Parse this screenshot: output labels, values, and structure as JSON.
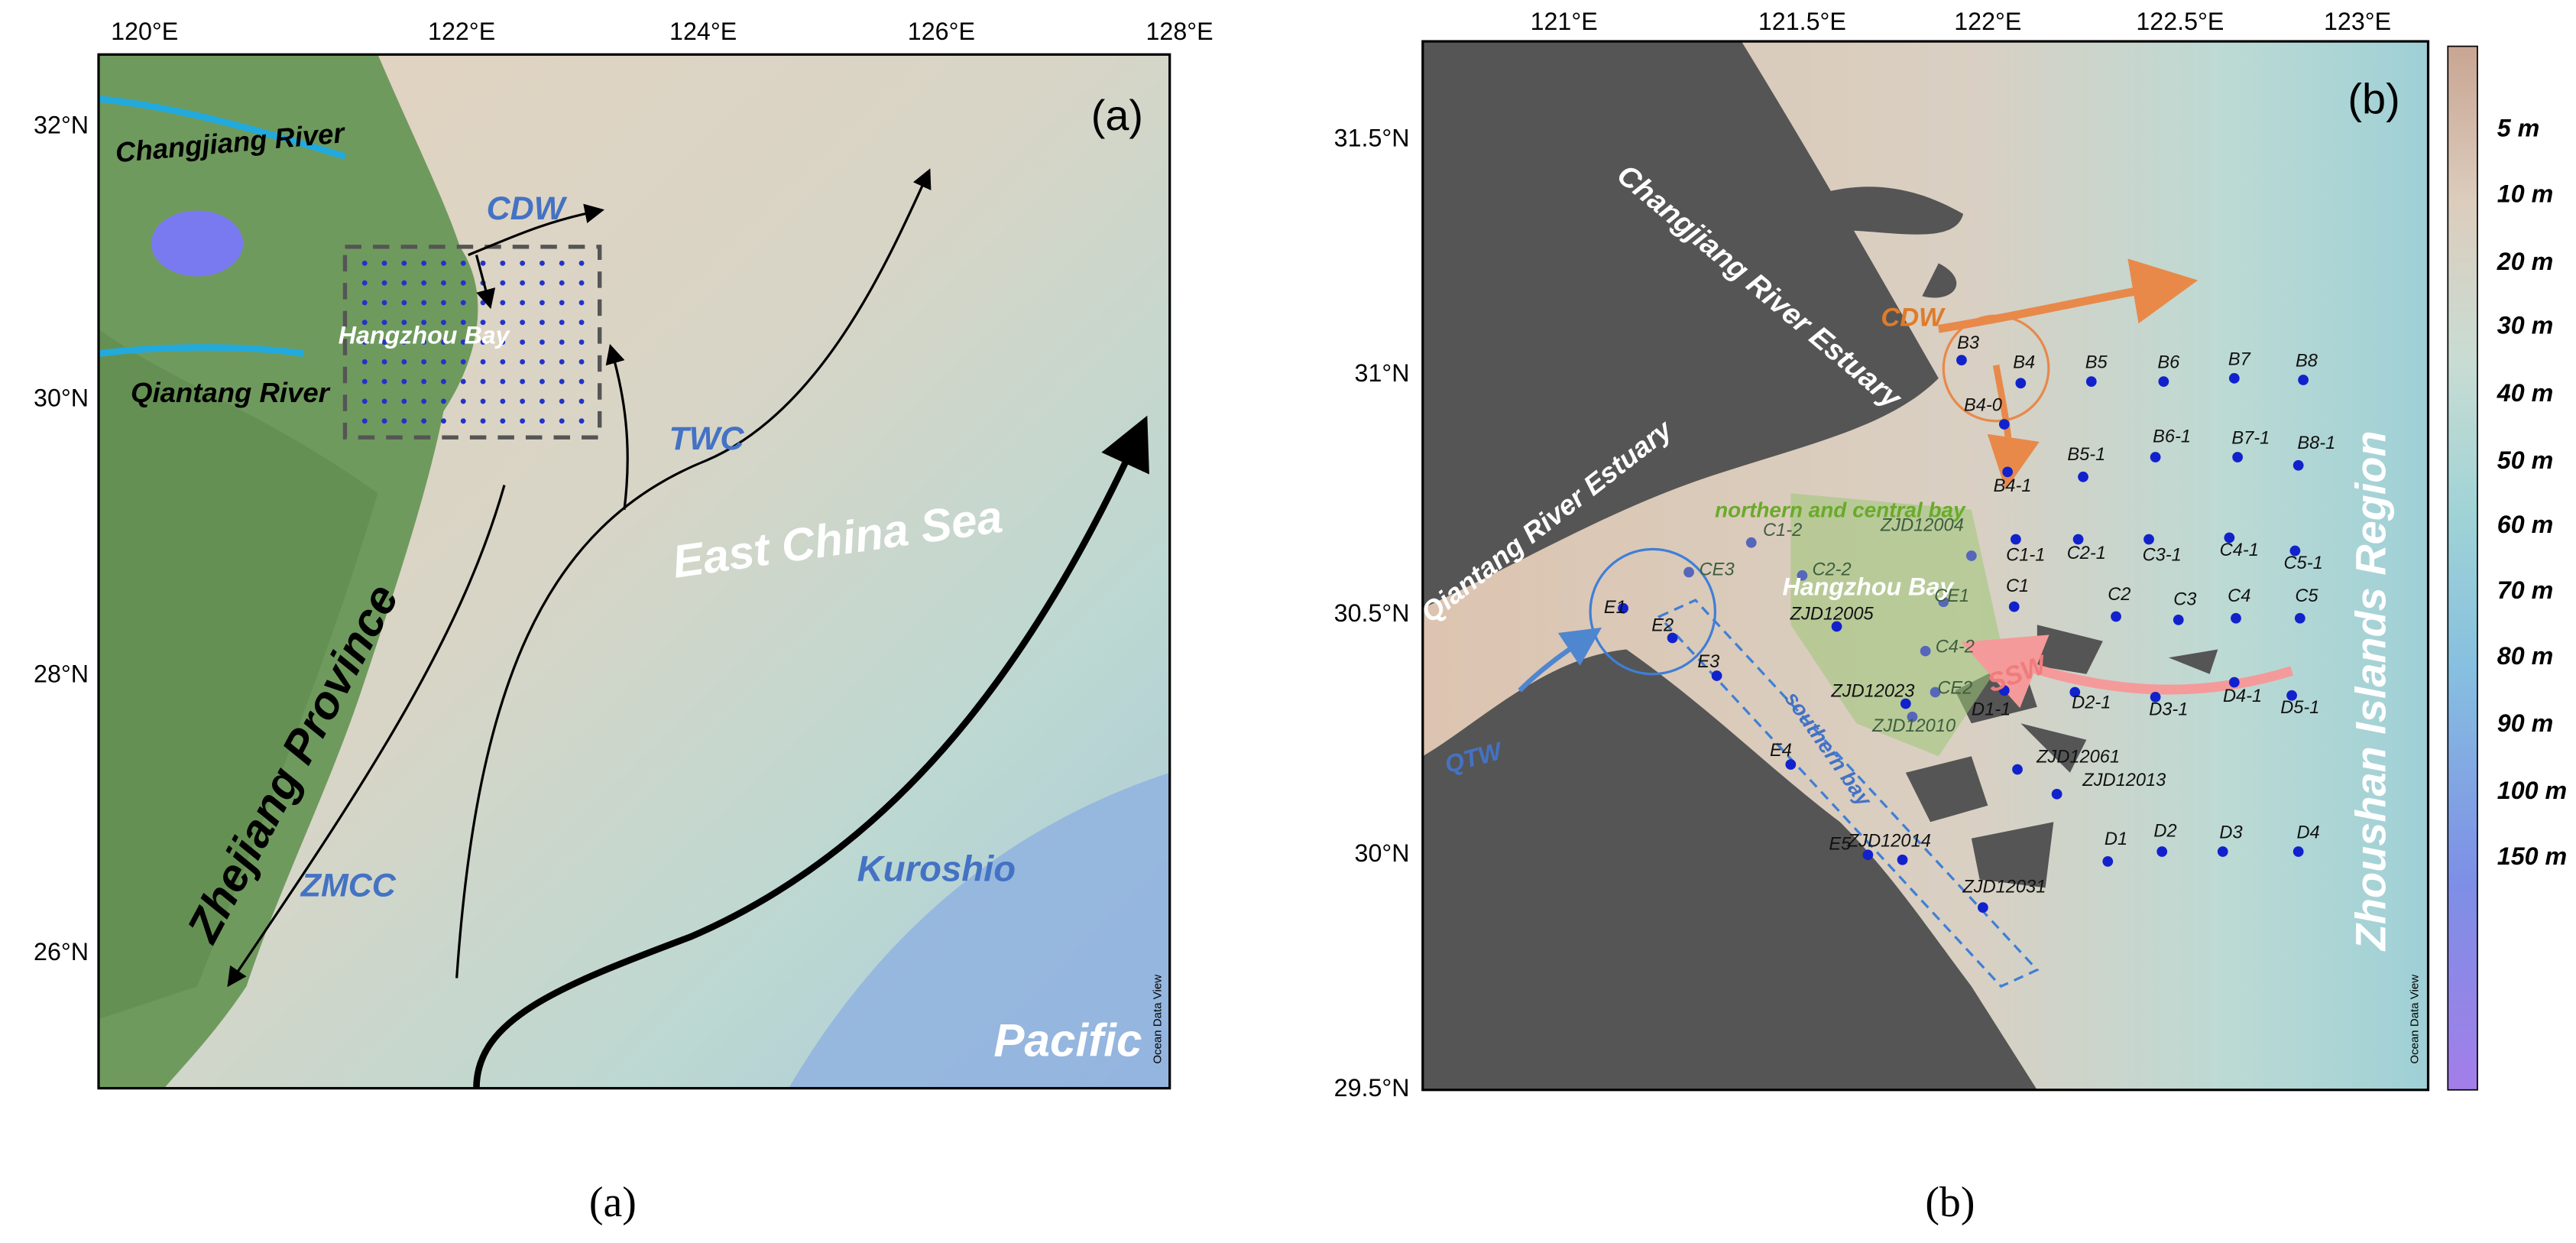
{
  "panel_a": {
    "lon_labels": [
      "120°E",
      "122°E",
      "124°E",
      "126°E",
      "128°E"
    ],
    "lat_labels": [
      "32°N",
      "30°N",
      "28°N",
      "26°N"
    ],
    "annotations": [
      "(a)",
      "Changjiang River",
      "CDW",
      "Hangzhou Bay",
      "Qiantang River",
      "TWC",
      "East China Sea",
      "Zhejiang Province",
      "ZMCC",
      "Kuroshio",
      "Pacific",
      "Ocean Data View"
    ],
    "caption": "(a)"
  },
  "panel_b": {
    "lon_labels": [
      "121°E",
      "121.5°E",
      "122°E",
      "122.5°E",
      "123°E"
    ],
    "lat_labels": [
      "31.5°N",
      "31°N",
      "30.5°N",
      "30°N",
      "29.5°N"
    ],
    "annotations": [
      "(b)",
      "Changjiang River Estuary",
      "Qiantang River Estuary",
      "CDW",
      "northern and central bay",
      "Hangzhou Bay",
      "SSW",
      "QTW",
      "southern bay",
      "Zhoushan Islands Region",
      "Ocean Data View"
    ],
    "stations": [
      {
        "label": "B3"
      },
      {
        "label": "B4"
      },
      {
        "label": "B5"
      },
      {
        "label": "B6"
      },
      {
        "label": "B7"
      },
      {
        "label": "B8"
      },
      {
        "label": "B4-0"
      },
      {
        "label": "B4-1"
      },
      {
        "label": "B5-1"
      },
      {
        "label": "B6-1"
      },
      {
        "label": "B7-1"
      },
      {
        "label": "B8-1"
      },
      {
        "label": "C1-1"
      },
      {
        "label": "C2-1"
      },
      {
        "label": "C3-1"
      },
      {
        "label": "C4-1"
      },
      {
        "label": "C5-1"
      },
      {
        "label": "C1"
      },
      {
        "label": "C2"
      },
      {
        "label": "C3"
      },
      {
        "label": "C4"
      },
      {
        "label": "C5"
      },
      {
        "label": "D1-1"
      },
      {
        "label": "D2-1"
      },
      {
        "label": "D3-1"
      },
      {
        "label": "D4-1"
      },
      {
        "label": "D5-1"
      },
      {
        "label": "ZJD12061"
      },
      {
        "label": "ZJD12013"
      },
      {
        "label": "D1"
      },
      {
        "label": "D2"
      },
      {
        "label": "D3"
      },
      {
        "label": "D4"
      },
      {
        "label": "ZJD12014"
      },
      {
        "label": "E5"
      },
      {
        "label": "ZJD12031"
      },
      {
        "label": "E4"
      },
      {
        "label": "E3"
      },
      {
        "label": "E1"
      },
      {
        "label": "E2"
      },
      {
        "label": "CE3"
      },
      {
        "label": "C1-2"
      },
      {
        "label": "C2-2"
      },
      {
        "label": "ZJD12005"
      },
      {
        "label": "ZJD12004"
      },
      {
        "label": "CE1"
      },
      {
        "label": "C4-2"
      },
      {
        "label": "ZJD12023"
      },
      {
        "label": "ZJD12010"
      },
      {
        "label": "CE2"
      }
    ],
    "colorbar_labels": [
      "5 m",
      "10 m",
      "20 m",
      "30 m",
      "40 m",
      "50 m",
      "60 m",
      "70 m",
      "80 m",
      "90 m",
      "100 m",
      "150 m"
    ],
    "caption": "(b)"
  }
}
